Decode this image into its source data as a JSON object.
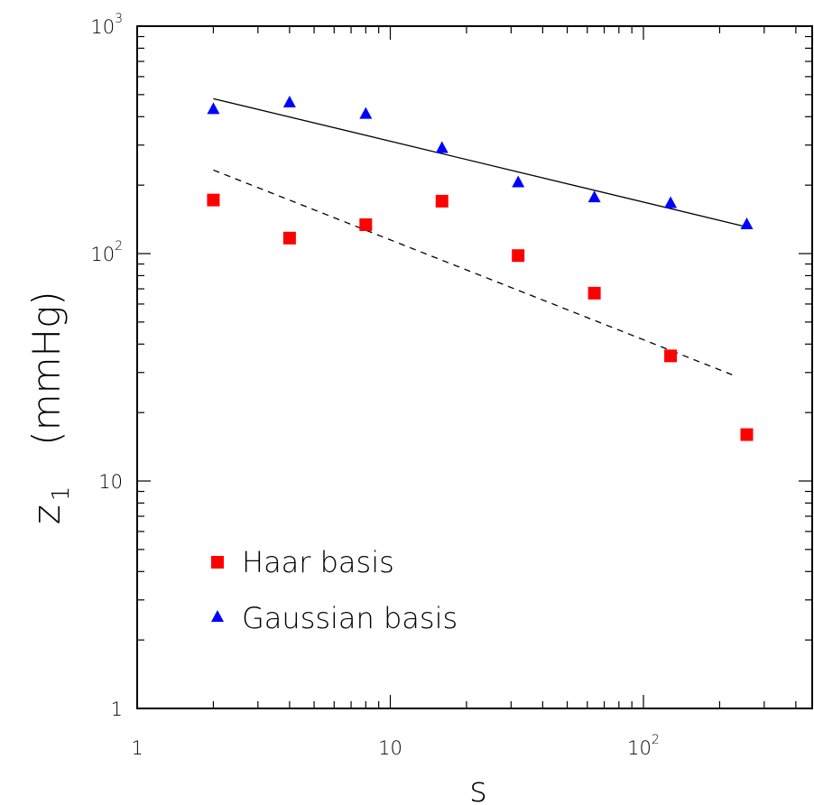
{
  "chart_data": {
    "type": "scatter",
    "x_scale": "log",
    "y_scale": "log",
    "xlim": [
      1,
      900
    ],
    "ylim": [
      1,
      1000
    ],
    "xlabel": "s",
    "ylabel_main": "z",
    "ylabel_sub": "1",
    "ylabel_unit": "(mmHg)",
    "x_ticks": [
      {
        "value": 1,
        "base": "1",
        "exp": ""
      },
      {
        "value": 10,
        "base": "10",
        "exp": ""
      },
      {
        "value": 100,
        "base": "10",
        "exp": "2"
      }
    ],
    "y_ticks": [
      {
        "value": 1,
        "base": "1",
        "exp": ""
      },
      {
        "value": 10,
        "base": "10",
        "exp": ""
      },
      {
        "value": 100,
        "base": "10",
        "exp": "2"
      },
      {
        "value": 1000,
        "base": "10",
        "exp": "3"
      }
    ],
    "series": [
      {
        "name": "Haar basis",
        "marker": "square",
        "color": "#ff0000",
        "x": [
          2,
          4,
          8,
          16,
          32,
          64,
          128,
          256
        ],
        "y": [
          172,
          117,
          134,
          170,
          98,
          67,
          35.5,
          16
        ]
      },
      {
        "name": "Gaussian basis",
        "marker": "triangle",
        "color": "#0000ff",
        "x": [
          2,
          4,
          8,
          16,
          32,
          64,
          128,
          256
        ],
        "y": [
          430,
          460,
          410,
          290,
          205,
          176,
          166,
          134
        ]
      }
    ],
    "fit_lines": [
      {
        "style": "solid",
        "color": "#000000",
        "x": [
          2,
          256
        ],
        "y": [
          480,
          131
        ]
      },
      {
        "style": "dashed",
        "color": "#000000",
        "x": [
          2,
          230
        ],
        "y": [
          233,
          29
        ]
      }
    ],
    "legend_position": "bottom-left"
  }
}
